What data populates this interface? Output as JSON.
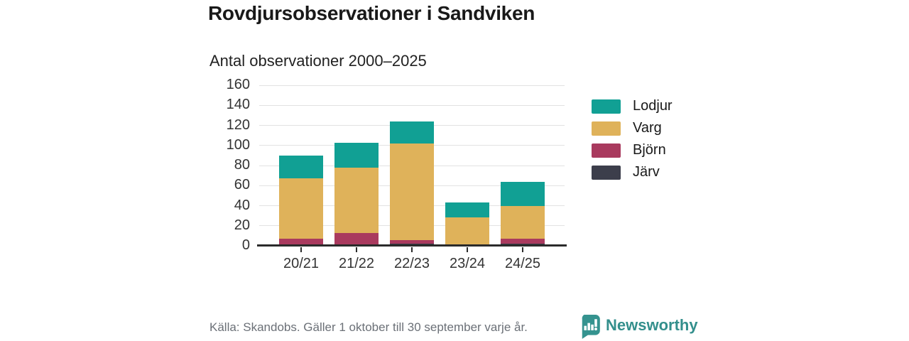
{
  "header": {
    "title": "Rovdjursobservationer i Sandviken",
    "subtitle": "Antal observationer 2000–2025"
  },
  "chart_data": {
    "type": "bar",
    "stacked": true,
    "title": "Rovdjursobservationer i Sandviken",
    "subtitle": "Antal observationer 2000–2025",
    "categories": [
      "20/21",
      "21/22",
      "22/23",
      "23/24",
      "24/25"
    ],
    "series": [
      {
        "name": "Lodjur",
        "color": "#11a094",
        "values": [
          23,
          25,
          22,
          15,
          24
        ]
      },
      {
        "name": "Varg",
        "color": "#dfb25a",
        "values": [
          60,
          65,
          96,
          28,
          33
        ]
      },
      {
        "name": "Björn",
        "color": "#a93a5e",
        "values": [
          6,
          12,
          4,
          0,
          5
        ]
      },
      {
        "name": "Järv",
        "color": "#3c3e4b",
        "values": [
          1,
          1,
          2,
          0,
          2
        ]
      }
    ],
    "totals": [
      90,
      103,
      124,
      43,
      64
    ],
    "xlabel": "",
    "ylabel": "",
    "ylim": [
      0,
      160
    ],
    "yticks": [
      0,
      20,
      40,
      60,
      80,
      100,
      120,
      140,
      160
    ],
    "grid": "horizontal",
    "legend_position": "right",
    "axis_color": "#2b2b2b",
    "gridline_color": "#e2e2e2"
  },
  "footer": {
    "source": "Källa: Skandobs. Gäller 1 oktober till 30 september varje år.",
    "brand": "Newsworthy",
    "brand_color": "#338f8c"
  }
}
